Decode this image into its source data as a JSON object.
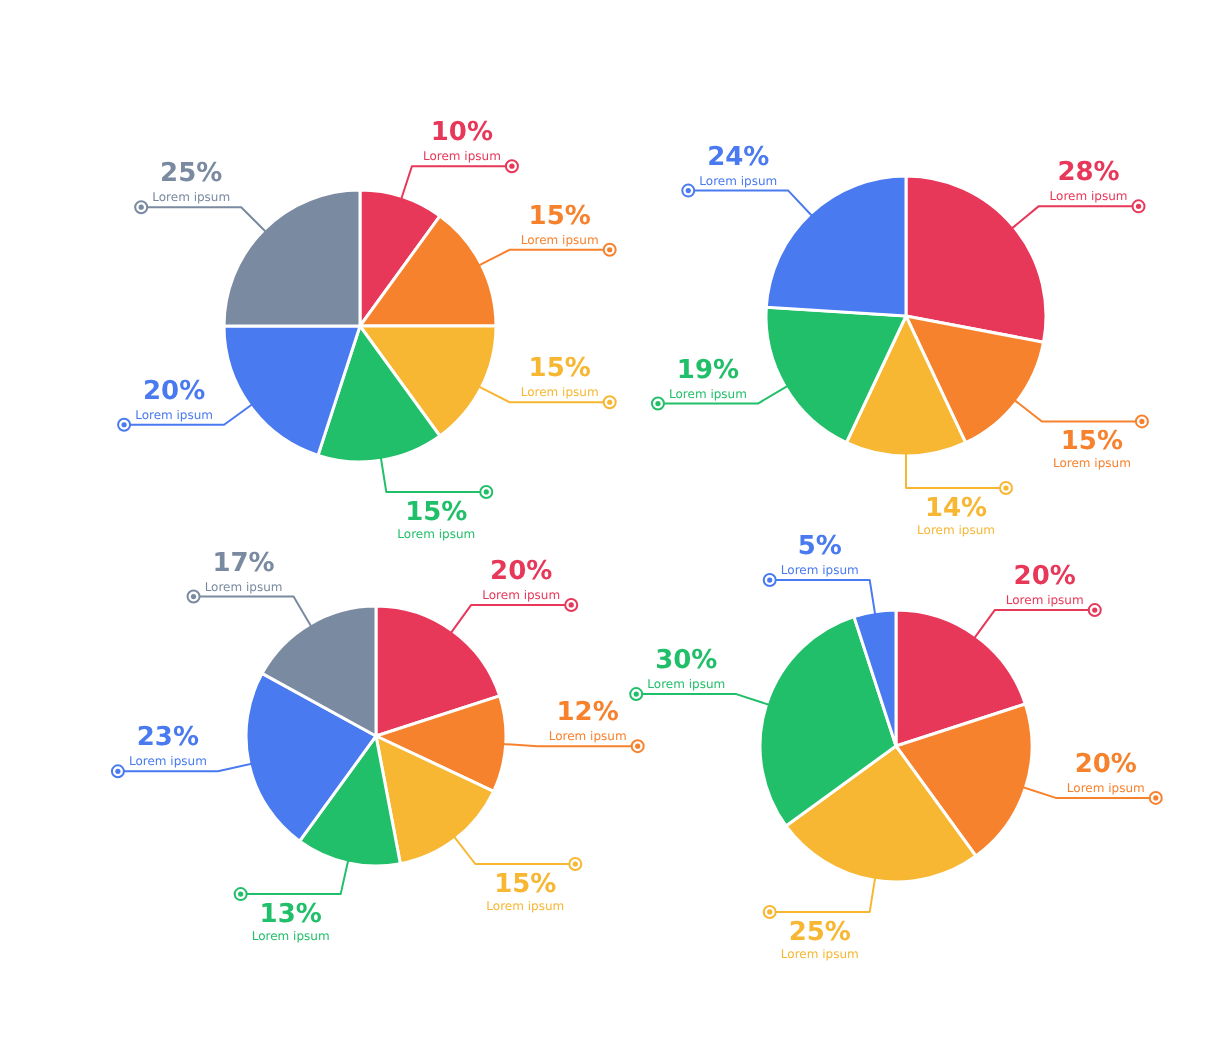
{
  "chart_data": [
    {
      "type": "pie",
      "categories": [
        "Lorem ipsum",
        "Lorem ipsum",
        "Lorem ipsum",
        "Lorem ipsum",
        "Lorem ipsum",
        "Lorem ipsum"
      ],
      "values": [
        10,
        15,
        15,
        15,
        20,
        25
      ],
      "value_labels": [
        "10%",
        "15%",
        "15%",
        "15%",
        "20%",
        "25%"
      ],
      "colors": [
        "#e8385a",
        "#f7822e",
        "#f7b733",
        "#22bf6a",
        "#4a7af0",
        "#7a8aa0"
      ]
    },
    {
      "type": "pie",
      "categories": [
        "Lorem ipsum",
        "Lorem ipsum",
        "Lorem ipsum",
        "Lorem ipsum",
        "Lorem ipsum"
      ],
      "values": [
        28,
        15,
        14,
        19,
        24
      ],
      "value_labels": [
        "28%",
        "15%",
        "14%",
        "19%",
        "24%"
      ],
      "colors": [
        "#e8385a",
        "#f7822e",
        "#f7b733",
        "#22bf6a",
        "#4a7af0"
      ]
    },
    {
      "type": "pie",
      "categories": [
        "Lorem ipsum",
        "Lorem ipsum",
        "Lorem ipsum",
        "Lorem ipsum",
        "Lorem ipsum",
        "Lorem ipsum"
      ],
      "values": [
        20,
        12,
        15,
        13,
        23,
        17
      ],
      "value_labels": [
        "20%",
        "12%",
        "15%",
        "13%",
        "23%",
        "17%"
      ],
      "colors": [
        "#e8385a",
        "#f7822e",
        "#f7b733",
        "#22bf6a",
        "#4a7af0",
        "#7a8aa0"
      ]
    },
    {
      "type": "pie",
      "categories": [
        "Lorem ipsum",
        "Lorem ipsum",
        "Lorem ipsum",
        "Lorem ipsum",
        "Lorem ipsum"
      ],
      "values": [
        20,
        20,
        25,
        30,
        5
      ],
      "value_labels": [
        "20%",
        "20%",
        "25%",
        "30%",
        "5%"
      ],
      "colors": [
        "#e8385a",
        "#f7822e",
        "#f7b733",
        "#22bf6a",
        "#4a7af0"
      ]
    }
  ]
}
